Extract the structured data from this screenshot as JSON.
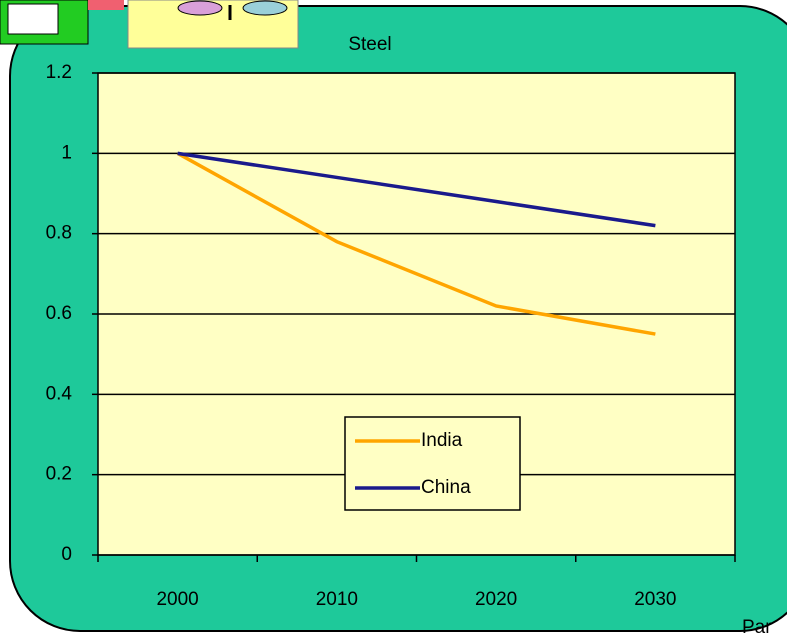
{
  "chart_data": {
    "type": "line",
    "title": "Steel",
    "categories": [
      "2000",
      "2010",
      "2020",
      "2030"
    ],
    "series": [
      {
        "name": "India",
        "color": "#ffa500",
        "values": [
          1,
          0.78,
          0.62,
          0.55
        ]
      },
      {
        "name": "China",
        "color": "#1a1a8c",
        "values": [
          1,
          0.94,
          0.88,
          0.82
        ]
      }
    ],
    "ylim": [
      0,
      1.2
    ],
    "yticks": [
      0,
      0.2,
      0.4,
      0.6,
      0.8,
      1,
      1.2
    ],
    "grid": true,
    "legend": "bottom-center",
    "annotation": "Par"
  }
}
